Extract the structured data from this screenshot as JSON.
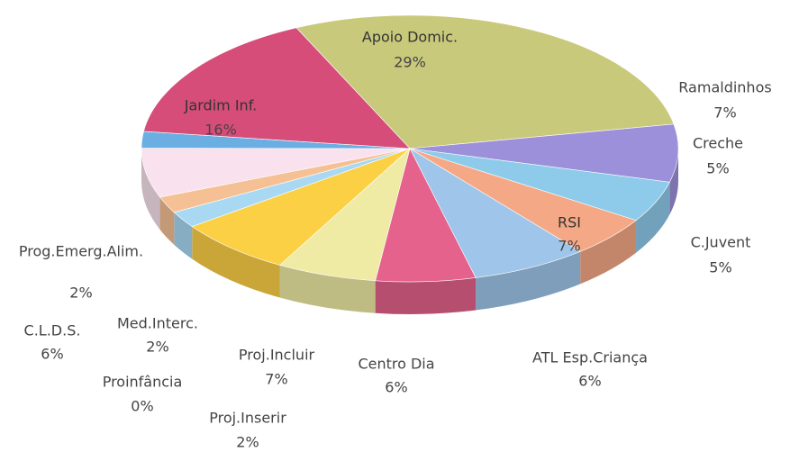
{
  "chart_data": {
    "type": "pie3d",
    "categories": [
      "Apoio Domic.",
      "Ramaldinhos",
      "Creche",
      "C.Juvent",
      "RSI",
      "ATL Esp.Criança",
      "Centro Dia",
      "Proj.Incluir",
      "Proj.Inserir",
      "Proinfância",
      "Med.Interc.",
      "C.L.D.S.",
      "Prog.Emerg.Alim.",
      "Jardim Inf."
    ],
    "values": [
      29,
      7,
      5,
      5,
      7,
      6,
      6,
      7,
      2,
      0,
      2,
      6,
      2,
      16
    ],
    "value_labels": [
      "29%",
      "7%",
      "5%",
      "5%",
      "7%",
      "6%",
      "6%",
      "7%",
      "2%",
      "0%",
      "2%",
      "6%",
      "2%",
      "16%"
    ],
    "colors": [
      "#c9c97c",
      "#9d90da",
      "#8ecbea",
      "#f5a886",
      "#9fc6ea",
      "#e4628c",
      "#efeba4",
      "#fbd045",
      "#a9d8f2",
      "#f0c8a0",
      "#f5c194",
      "#f9e2ee",
      "#6aaee2",
      "#d64d7a"
    ]
  }
}
